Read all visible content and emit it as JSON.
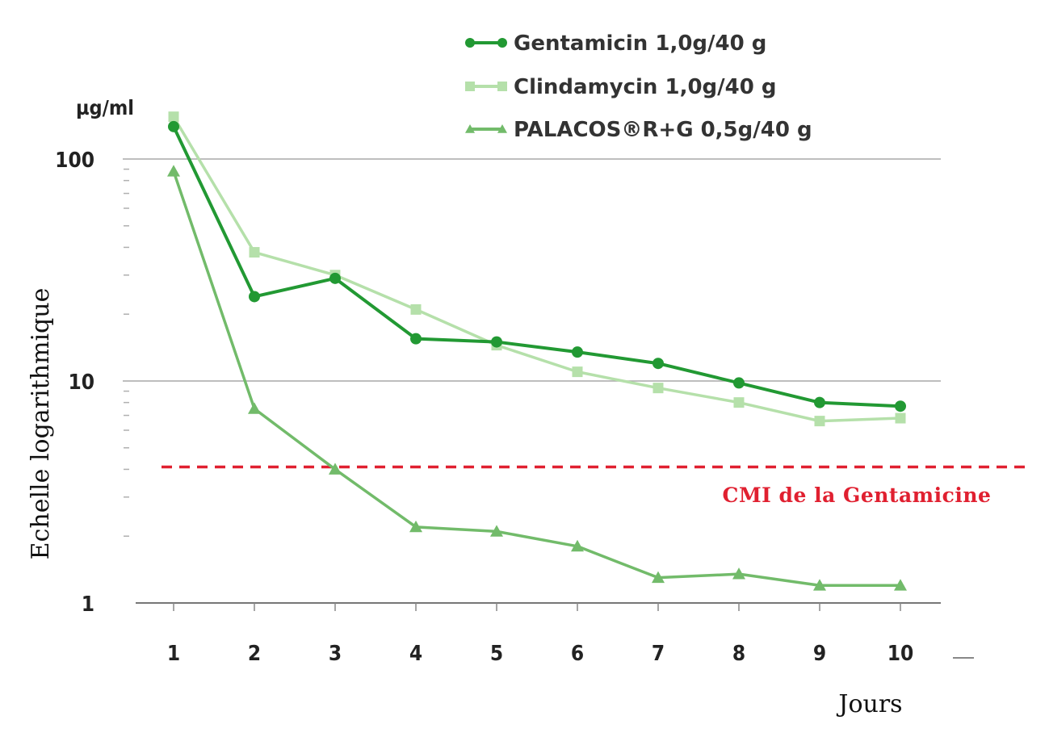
{
  "chart_data": {
    "type": "line",
    "yscale": "log",
    "ylim": [
      1,
      150
    ],
    "x": [
      1,
      2,
      3,
      4,
      5,
      6,
      7,
      8,
      9,
      10
    ],
    "xlabel": "Jours",
    "ylabel": "Echelle logarithmique",
    "yunit": "µg/ml",
    "yticks": [
      1,
      10,
      100
    ],
    "ytick_labels": [
      "1",
      "10",
      "100"
    ],
    "series": [
      {
        "name": "Gentamicin 1,0g/40 g",
        "marker": "circle",
        "color": "#229933",
        "values": [
          140,
          24,
          29,
          15.5,
          15,
          13.5,
          12,
          9.8,
          8,
          7.7
        ]
      },
      {
        "name": "Clindamycin 1,0g/40 g",
        "marker": "square",
        "color": "#b5e0aa",
        "values": [
          155,
          38,
          30,
          21,
          14.5,
          11,
          9.3,
          8,
          6.6,
          6.8
        ]
      },
      {
        "name": "PALACOS®R+G 0,5g/40 g",
        "marker": "triangle",
        "color": "#72bb6a",
        "values": [
          88,
          7.5,
          4,
          2.2,
          2.1,
          1.8,
          1.3,
          1.35,
          1.2,
          1.2
        ]
      }
    ],
    "reference_line": {
      "label": "CMI de la Gentamicine",
      "value": 4.1,
      "color": "#e02030",
      "style": "dashed"
    },
    "legend": "top-center",
    "grid": "horizontal at decades"
  }
}
